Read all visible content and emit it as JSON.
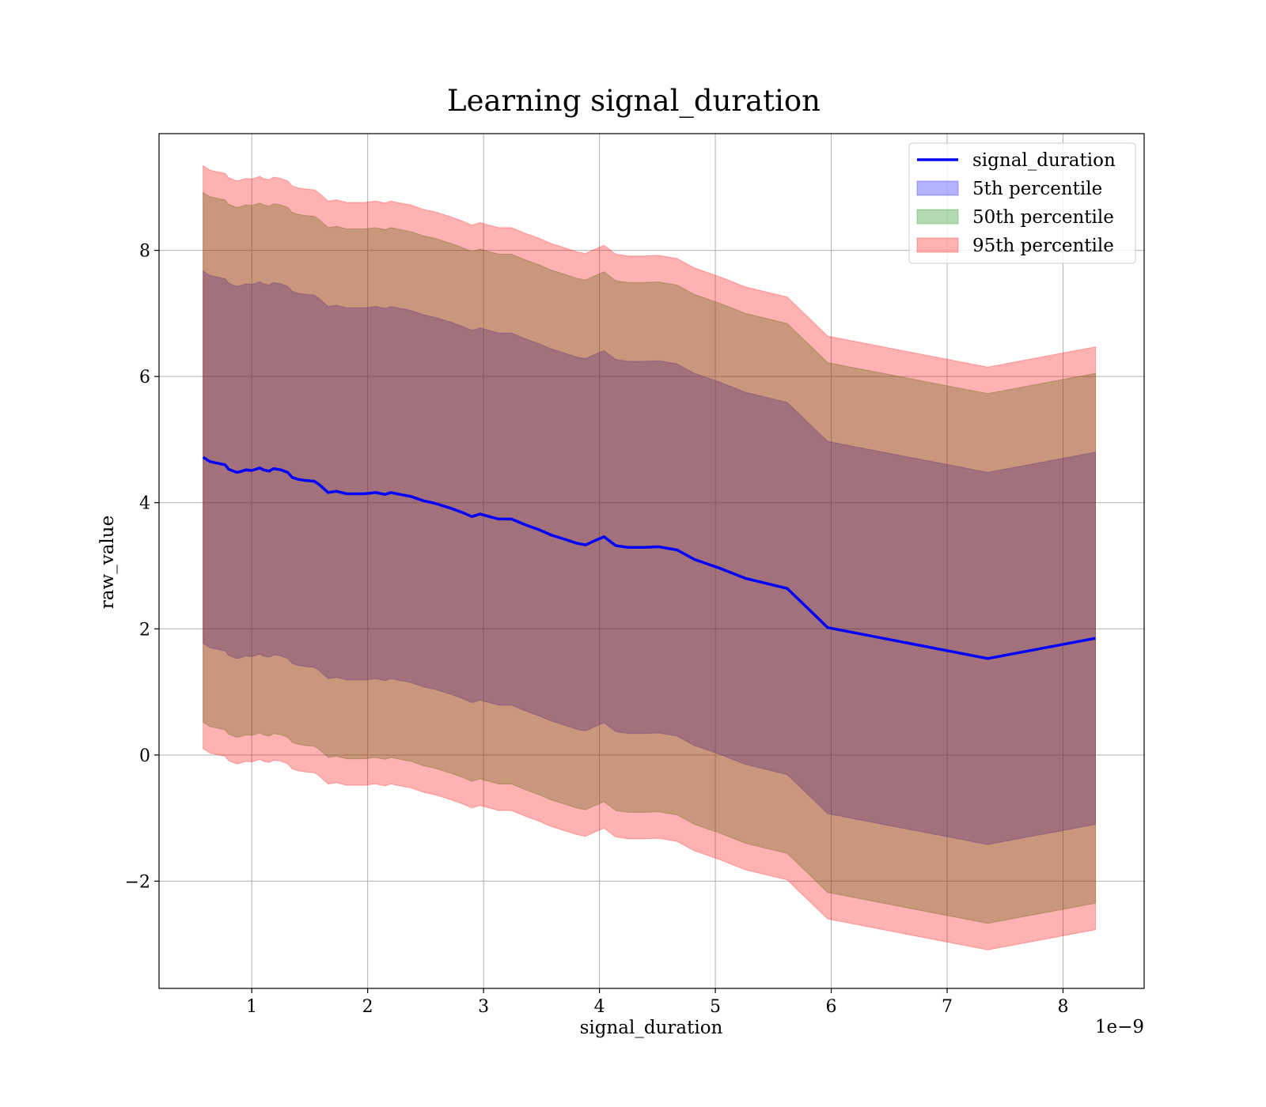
{
  "chart_data": {
    "type": "area",
    "title": "Learning signal_duration",
    "xlabel": "signal_duration",
    "ylabel": "raw_value",
    "x_offset_label": "1e−9",
    "xlim": [
      0.2,
      8.7
    ],
    "ylim": [
      -3.7,
      9.85
    ],
    "x_ticks": [
      1,
      2,
      3,
      4,
      5,
      6,
      7,
      8
    ],
    "x_tick_labels": [
      "1",
      "2",
      "3",
      "4",
      "5",
      "6",
      "7",
      "8"
    ],
    "y_ticks": [
      -2,
      0,
      2,
      4,
      6,
      8
    ],
    "y_tick_labels": [
      "−2",
      "0",
      "2",
      "4",
      "6",
      "8"
    ],
    "grid": true,
    "legend_position": "top-right",
    "x": [
      0.58,
      0.64,
      0.77,
      0.8,
      0.87,
      0.9,
      0.95,
      1.0,
      1.07,
      1.1,
      1.15,
      1.19,
      1.25,
      1.31,
      1.35,
      1.4,
      1.47,
      1.54,
      1.58,
      1.66,
      1.73,
      1.82,
      1.87,
      1.97,
      2.07,
      2.15,
      2.2,
      2.28,
      2.37,
      2.48,
      2.58,
      2.65,
      2.72,
      2.81,
      2.9,
      2.97,
      3.05,
      3.13,
      3.24,
      3.36,
      3.48,
      3.58,
      3.7,
      3.8,
      3.88,
      3.95,
      4.04,
      4.14,
      4.25,
      4.38,
      4.51,
      4.67,
      4.82,
      5.04,
      5.26,
      5.62,
      5.97,
      7.35,
      8.28
    ],
    "series": [
      {
        "name": "signal_duration",
        "color": "#0000ff",
        "values": [
          4.72,
          4.65,
          4.6,
          4.53,
          4.48,
          4.49,
          4.52,
          4.51,
          4.55,
          4.52,
          4.5,
          4.54,
          4.52,
          4.48,
          4.4,
          4.37,
          4.35,
          4.34,
          4.29,
          4.16,
          4.18,
          4.14,
          4.14,
          4.14,
          4.16,
          4.13,
          4.16,
          4.13,
          4.1,
          4.03,
          3.99,
          3.95,
          3.91,
          3.85,
          3.78,
          3.82,
          3.78,
          3.74,
          3.74,
          3.65,
          3.57,
          3.49,
          3.42,
          3.36,
          3.33,
          3.39,
          3.46,
          3.32,
          3.29,
          3.29,
          3.3,
          3.25,
          3.1,
          2.96,
          2.8,
          2.64,
          2.02,
          1.53,
          1.85
        ]
      },
      {
        "name": "5th percentile",
        "color": "#0000ff",
        "lower_offset": -2.95,
        "upper_offset": 2.95
      },
      {
        "name": "50th percentile",
        "color": "#008000",
        "lower_offset": -4.2,
        "upper_offset": 4.2
      },
      {
        "name": "95th percentile",
        "color": "#ff0000",
        "lower_offset": -4.62,
        "upper_offset": 4.62
      }
    ]
  }
}
